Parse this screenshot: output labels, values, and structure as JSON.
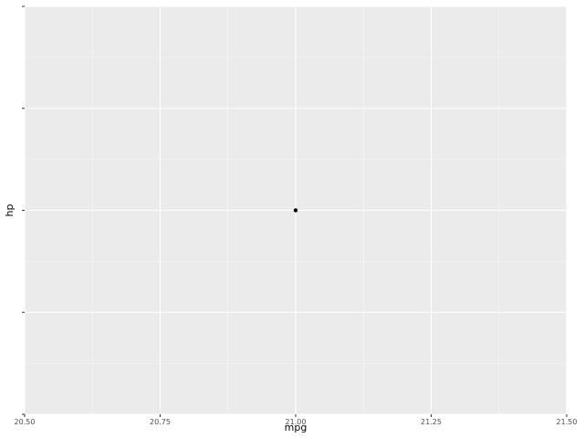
{
  "chart_data": {
    "type": "scatter",
    "title": "",
    "xlabel": "mpg",
    "ylabel": "hp",
    "x": [
      21.0
    ],
    "y": [
      0
    ],
    "xlim": [
      20.5,
      21.5
    ],
    "x_major_ticks": [
      20.5,
      20.75,
      21.0,
      21.25,
      21.5
    ],
    "x_tick_labels": [
      "20.50",
      "20.75",
      "21.00",
      "21.25",
      "21.50"
    ],
    "x_minor_ticks": [
      20.625,
      20.875,
      21.125,
      21.375
    ],
    "ylim": [
      -1,
      1
    ],
    "y_major_ticks": [
      -1,
      -0.5,
      0,
      0.5,
      1
    ],
    "y_tick_labels": [
      "",
      "",
      "",
      "",
      ""
    ],
    "y_minor_ticks": [
      -0.75,
      -0.25,
      0.25,
      0.75
    ],
    "grid": true,
    "panel_color": "#ebebeb",
    "gridline_color": "#ffffff",
    "point_color": "#000000"
  }
}
